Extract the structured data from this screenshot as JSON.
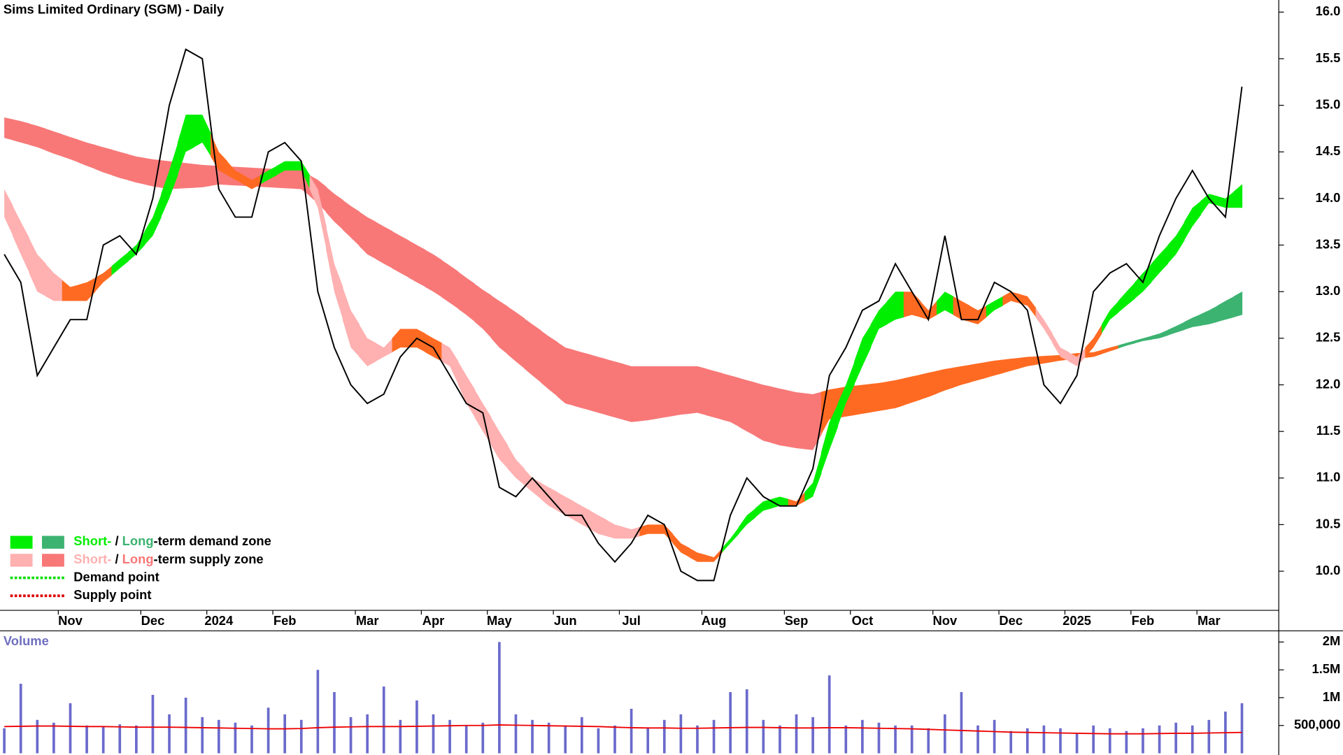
{
  "chart_data": [
    {
      "type": "line",
      "title": "Sims Limited Ordinary (SGM) - Daily",
      "color": "#000000",
      "categories": [
        null,
        null,
        null,
        null,
        "Nov",
        null,
        null,
        null,
        null,
        "Dec",
        null,
        null,
        null,
        "2024",
        null,
        null,
        null,
        "Feb",
        null,
        null,
        null,
        null,
        "Mar",
        null,
        null,
        null,
        "Apr",
        null,
        null,
        null,
        "May",
        null,
        null,
        null,
        "Jun",
        null,
        null,
        null,
        "Jul",
        null,
        null,
        null,
        null,
        "Aug",
        null,
        null,
        null,
        null,
        "Sep",
        null,
        null,
        null,
        "Oct",
        null,
        null,
        null,
        null,
        "Nov",
        null,
        null,
        null,
        "Dec",
        null,
        null,
        null,
        "2025",
        null,
        null,
        null,
        "Feb",
        null,
        null,
        null,
        "Mar",
        null,
        null
      ],
      "values": [
        13.4,
        13.1,
        12.1,
        12.4,
        12.7,
        12.7,
        13.5,
        13.6,
        13.4,
        14.0,
        15.0,
        15.6,
        15.5,
        14.1,
        13.8,
        13.8,
        14.5,
        14.6,
        14.4,
        13.0,
        12.4,
        12.0,
        11.8,
        11.9,
        12.3,
        12.5,
        12.4,
        12.1,
        11.8,
        11.7,
        10.9,
        10.8,
        11.0,
        10.8,
        10.6,
        10.6,
        10.3,
        10.1,
        10.3,
        10.6,
        10.5,
        10.0,
        9.9,
        9.9,
        10.6,
        11.0,
        10.8,
        10.7,
        10.7,
        11.1,
        12.1,
        12.4,
        12.8,
        12.9,
        13.3,
        13.0,
        12.7,
        13.6,
        12.7,
        12.7,
        13.1,
        13.0,
        12.8,
        12.0,
        11.8,
        12.1,
        13.0,
        13.2,
        13.3,
        13.1,
        13.6,
        14.0,
        14.3,
        14.0,
        13.8,
        15.2
      ],
      "bands": [
        {
          "upper": [
            14.87,
            14.83,
            14.78,
            14.72,
            14.66,
            14.6,
            14.55,
            14.5,
            14.45,
            14.42,
            14.4,
            14.38,
            14.36,
            14.35,
            14.34,
            14.33,
            14.32,
            14.31,
            14.3,
            14.2,
            14.05,
            13.92,
            13.8,
            13.7,
            13.6,
            13.5,
            13.4,
            13.28,
            13.15,
            13.02,
            12.9,
            12.78,
            12.65,
            12.52,
            12.4,
            12.35,
            12.3,
            12.25,
            12.2,
            12.2,
            12.2,
            12.2,
            12.2,
            12.15,
            12.1,
            12.05,
            12.0,
            11.96,
            11.92,
            11.9,
            11.95,
            11.98,
            12.0,
            12.02,
            12.05,
            12.09,
            12.13,
            12.17,
            12.2,
            12.23,
            12.26,
            12.28,
            12.3,
            12.31,
            12.32,
            12.34,
            12.35,
            12.4,
            12.45,
            12.5,
            12.55,
            12.63,
            12.72,
            12.8,
            12.9,
            13.0
          ],
          "lower": [
            14.65,
            14.6,
            14.55,
            14.48,
            14.42,
            14.35,
            14.28,
            14.22,
            14.17,
            14.13,
            14.1,
            14.11,
            14.12,
            14.15,
            14.14,
            14.13,
            14.12,
            14.11,
            14.1,
            13.95,
            13.75,
            13.58,
            13.4,
            13.3,
            13.2,
            13.1,
            13.0,
            12.88,
            12.75,
            12.6,
            12.4,
            12.25,
            12.1,
            11.95,
            11.8,
            11.75,
            11.7,
            11.65,
            11.6,
            11.62,
            11.65,
            11.68,
            11.7,
            11.65,
            11.6,
            11.5,
            11.4,
            11.35,
            11.32,
            11.3,
            11.63,
            11.66,
            11.69,
            11.72,
            11.75,
            11.81,
            11.87,
            11.94,
            12.0,
            12.05,
            12.1,
            12.15,
            12.2,
            12.23,
            12.26,
            12.28,
            12.3,
            12.36,
            12.42,
            12.47,
            12.5,
            12.56,
            12.62,
            12.65,
            12.7,
            12.75
          ],
          "colors": [
            "#f87878",
            "#f87878",
            "#f87878",
            "#f87878",
            "#f87878",
            "#f87878",
            "#f87878",
            "#f87878",
            "#f87878",
            "#f87878",
            "#f87878",
            "#f87878",
            "#f87878",
            "#f87878",
            "#f87878",
            "#f87878",
            "#f87878",
            "#f87878",
            "#f87878",
            "#f87878",
            "#f87878",
            "#f87878",
            "#f87878",
            "#f87878",
            "#f87878",
            "#f87878",
            "#f87878",
            "#f87878",
            "#f87878",
            "#f87878",
            "#f87878",
            "#f87878",
            "#f87878",
            "#f87878",
            "#f87878",
            "#f87878",
            "#f87878",
            "#f87878",
            "#f87878",
            "#f87878",
            "#f87878",
            "#f87878",
            "#f87878",
            "#f87878",
            "#f87878",
            "#f87878",
            "#f87878",
            "#f87878",
            "#f87878",
            "#f87878",
            "#ff6a22",
            "#ff6a22",
            "#ff6a22",
            "#ff6a22",
            "#ff6a22",
            "#ff6a22",
            "#ff6a22",
            "#ff6a22",
            "#ff6a22",
            "#ff6a22",
            "#ff6a22",
            "#ff6a22",
            "#ff6a22",
            "#ff6a22",
            "#ff6a22",
            "#ff6a22",
            "#ff6a22",
            "#ff6a22",
            "#3cb371",
            "#3cb371",
            "#3cb371",
            "#3cb371",
            "#3cb371",
            "#3cb371",
            "#3cb371",
            "#3cb371"
          ]
        },
        {
          "upper": [
            14.1,
            13.75,
            13.4,
            13.2,
            13.05,
            13.1,
            13.2,
            13.35,
            13.5,
            13.8,
            14.3,
            14.9,
            14.9,
            14.5,
            14.3,
            14.2,
            14.3,
            14.4,
            14.4,
            14.1,
            13.3,
            12.8,
            12.5,
            12.4,
            12.6,
            12.6,
            12.5,
            12.4,
            12.1,
            11.8,
            11.5,
            11.2,
            11.0,
            10.9,
            10.8,
            10.7,
            10.6,
            10.5,
            10.45,
            10.5,
            10.5,
            10.3,
            10.2,
            10.15,
            10.35,
            10.6,
            10.75,
            10.8,
            10.75,
            10.95,
            11.6,
            12.0,
            12.5,
            12.8,
            13.0,
            13.0,
            12.8,
            13.0,
            12.9,
            12.8,
            12.9,
            13.0,
            12.95,
            12.7,
            12.4,
            12.3,
            12.5,
            12.8,
            13.0,
            13.2,
            13.4,
            13.6,
            13.9,
            14.05,
            14.0,
            14.15
          ],
          "lower": [
            13.8,
            13.4,
            13.0,
            12.9,
            12.9,
            12.9,
            13.1,
            13.25,
            13.4,
            13.6,
            14.0,
            14.5,
            14.6,
            14.3,
            14.2,
            14.1,
            14.2,
            14.3,
            14.3,
            13.9,
            13.0,
            12.4,
            12.2,
            12.3,
            12.4,
            12.4,
            12.3,
            12.2,
            11.8,
            11.5,
            11.2,
            11.0,
            10.85,
            10.7,
            10.6,
            10.5,
            10.4,
            10.35,
            10.35,
            10.4,
            10.4,
            10.2,
            10.1,
            10.1,
            10.3,
            10.5,
            10.65,
            10.7,
            10.7,
            10.8,
            11.3,
            11.8,
            12.2,
            12.6,
            12.7,
            12.75,
            12.7,
            12.8,
            12.7,
            12.65,
            12.8,
            12.9,
            12.85,
            12.6,
            12.3,
            12.2,
            12.4,
            12.7,
            12.85,
            13.0,
            13.2,
            13.4,
            13.7,
            13.95,
            13.9,
            13.9
          ],
          "colors": [
            "#ffb0b0",
            "#ffb0b0",
            "#ffb0b0",
            "#ffb0b0",
            "#ff6a22",
            "#ff6a22",
            "#ff6a22",
            "#00ee00",
            "#00ee00",
            "#00ee00",
            "#00ee00",
            "#00ee00",
            "#00ee00",
            "#ff6a22",
            "#ff6a22",
            "#ff6a22",
            "#00ee00",
            "#00ee00",
            "#00ee00",
            "#ffb0b0",
            "#ffb0b0",
            "#ffb0b0",
            "#ffb0b0",
            "#ffb0b0",
            "#ff6a22",
            "#ff6a22",
            "#ff6a22",
            "#ffb0b0",
            "#ffb0b0",
            "#ffb0b0",
            "#ffb0b0",
            "#ffb0b0",
            "#ffb0b0",
            "#ffb0b0",
            "#ffb0b0",
            "#ffb0b0",
            "#ffb0b0",
            "#ffb0b0",
            "#ffb0b0",
            "#ff6a22",
            "#ff6a22",
            "#ff6a22",
            "#ff6a22",
            "#ff6a22",
            "#00ee00",
            "#00ee00",
            "#00ee00",
            "#00ee00",
            "#ff6a22",
            "#00ee00",
            "#00ee00",
            "#00ee00",
            "#00ee00",
            "#00ee00",
            "#00ee00",
            "#ff6a22",
            "#ff6a22",
            "#00ee00",
            "#ff6a22",
            "#ff6a22",
            "#00ee00",
            "#ff6a22",
            "#ff6a22",
            "#ffb0b0",
            "#ffb0b0",
            "#ffb0b0",
            "#ff6a22",
            "#00ee00",
            "#00ee00",
            "#00ee00",
            "#00ee00",
            "#00ee00",
            "#00ee00",
            "#00ee00",
            "#00ee00",
            "#00ee00"
          ]
        }
      ],
      "ylim": [
        9.58,
        16.13
      ],
      "yticks": [
        {
          "value": 10,
          "label": "10.0"
        },
        10.5,
        {
          "value": 11,
          "label": "11.0"
        },
        11.5,
        {
          "value": 12,
          "label": "12.0"
        },
        12.5,
        {
          "value": 13,
          "label": "13.0"
        },
        13.5,
        {
          "value": 14,
          "label": "14.0"
        },
        14.5,
        {
          "value": 15,
          "label": "15.0"
        },
        15.5,
        {
          "value": 16,
          "label": "16.0"
        }
      ],
      "legend": [
        {
          "swatches": [
            "#00ee00",
            "#3cb371"
          ],
          "short": "Short-",
          "sep": " / ",
          "long": "Long",
          "text": "-term demand zone"
        },
        {
          "swatches": [
            "#ffb0b0",
            "#f87878"
          ],
          "short": "Short-",
          "sep": " / ",
          "long": "Long",
          "text": "-term supply zone"
        },
        {
          "line_color": "#00dd00",
          "text": "Demand point"
        },
        {
          "line_color": "#dd0000",
          "text": "Supply point"
        }
      ]
    },
    {
      "type": "bar",
      "title": "Volume",
      "color": "#6a6acc",
      "values": [
        450000,
        1250000,
        600000,
        550000,
        900000,
        500000,
        480000,
        520000,
        500000,
        1050000,
        700000,
        1000000,
        650000,
        600000,
        550000,
        500000,
        820000,
        700000,
        600000,
        1500000,
        1100000,
        650000,
        700000,
        1200000,
        600000,
        950000,
        700000,
        600000,
        500000,
        550000,
        2000000,
        700000,
        600000,
        550000,
        500000,
        650000,
        450000,
        500000,
        800000,
        450000,
        600000,
        700000,
        500000,
        600000,
        1100000,
        1150000,
        600000,
        500000,
        700000,
        650000,
        1400000,
        500000,
        600000,
        550000,
        500000,
        500000,
        450000,
        700000,
        1100000,
        500000,
        600000,
        400000,
        450000,
        500000,
        450000,
        350000,
        500000,
        450000,
        400000,
        450000,
        500000,
        550000,
        500000,
        600000,
        750000,
        900000
      ],
      "average": {
        "color": "#ee0000",
        "values": [
          480000,
          485000,
          490000,
          490000,
          485000,
          480000,
          480000,
          475000,
          470000,
          470000,
          470000,
          465000,
          460000,
          455000,
          450000,
          445000,
          440000,
          440000,
          445000,
          460000,
          470000,
          475000,
          480000,
          480000,
          480000,
          485000,
          490000,
          495000,
          500000,
          500000,
          510000,
          505000,
          500000,
          495000,
          490000,
          485000,
          480000,
          470000,
          460000,
          455000,
          455000,
          450000,
          450000,
          455000,
          460000,
          465000,
          465000,
          460000,
          455000,
          455000,
          460000,
          460000,
          455000,
          450000,
          445000,
          440000,
          430000,
          420000,
          410000,
          400000,
          390000,
          380000,
          375000,
          370000,
          365000,
          360000,
          355000,
          350000,
          350000,
          350000,
          355000,
          360000,
          360000,
          365000,
          370000,
          375000
        ]
      },
      "ylim": [
        0,
        2185000
      ],
      "yticks": [
        {
          "value": 500000,
          "label": "500,000"
        },
        {
          "value": 1000000,
          "label": "1M"
        },
        {
          "value": 1500000,
          "label": "1.5M"
        },
        {
          "value": 2000000,
          "label": "2M"
        }
      ]
    }
  ]
}
